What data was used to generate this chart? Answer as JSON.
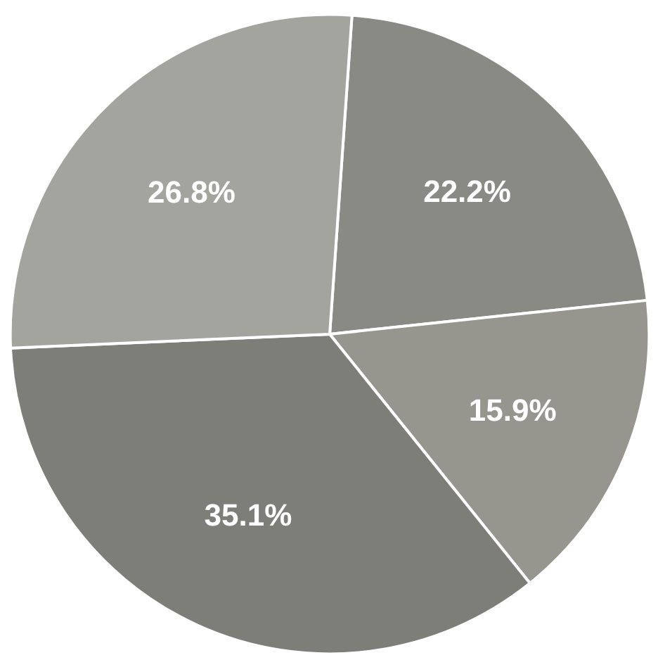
{
  "chart_data": {
    "type": "pie",
    "categories": [
      null,
      null,
      null,
      null
    ],
    "values": [
      22.2,
      15.9,
      35.1,
      26.8
    ],
    "colors": [
      "#8a8a85",
      "#96968f",
      "#7e7e79",
      "#a4a49e"
    ],
    "data_labels": true,
    "value_labels": [
      "22.2%",
      "15.9%",
      "35.1%",
      "26.8%"
    ]
  }
}
